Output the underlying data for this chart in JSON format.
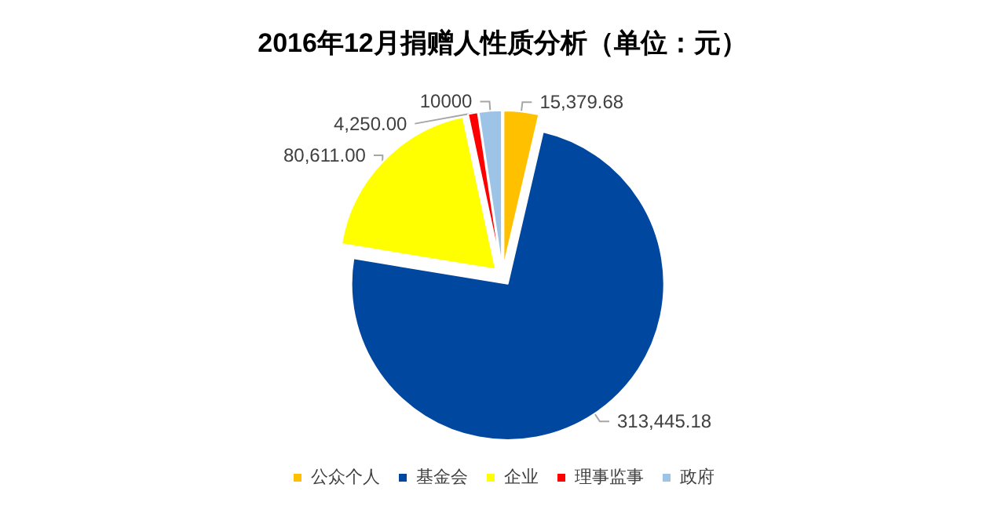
{
  "chart_data": {
    "type": "pie",
    "title": "2016年12月捐赠人性质分析（单位：元）",
    "categories": [
      "公众个人",
      "基金会",
      "企业",
      "理事监事",
      "政府"
    ],
    "values": [
      15379.68,
      313445.18,
      80611.0,
      4250.0,
      10000
    ],
    "value_labels": [
      "15,379.68",
      "313,445.18",
      "80,611.00",
      "4,250.00",
      "10000"
    ],
    "colors": [
      "#ffc000",
      "#0047a0",
      "#ffff00",
      "#ff0000",
      "#9dc3e6"
    ],
    "legend": "bottom"
  }
}
